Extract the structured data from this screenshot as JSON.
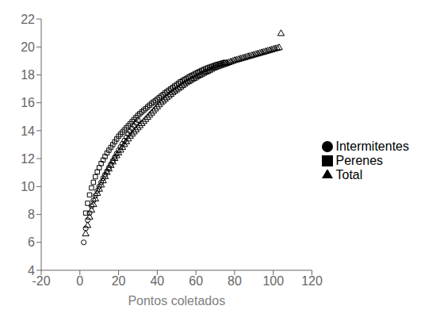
{
  "chart_data": {
    "type": "scatter",
    "xlabel": "Pontos coletados",
    "xlim": [
      -20,
      120
    ],
    "ylim": [
      4,
      22
    ],
    "xticks": [
      -20,
      0,
      20,
      40,
      60,
      80,
      100,
      120
    ],
    "yticks": [
      4,
      6,
      8,
      10,
      12,
      14,
      16,
      18,
      20,
      22
    ],
    "grid": false,
    "legend": "right",
    "series": [
      {
        "name": "Total",
        "color": "#000000",
        "marker": "triangle",
        "x": [
          3,
          4,
          5,
          6,
          7,
          8,
          9,
          10,
          11,
          12,
          13,
          14,
          15,
          16,
          17,
          18,
          19,
          20,
          21,
          22,
          23,
          24,
          25,
          26,
          27,
          28,
          29,
          30,
          31,
          32,
          33,
          34,
          35,
          36,
          37,
          38,
          39,
          40,
          41,
          42,
          43,
          44,
          45,
          46,
          47,
          48,
          49,
          50,
          51,
          52,
          53,
          54,
          55,
          56,
          57,
          58,
          59,
          60,
          61,
          62,
          63,
          64,
          65,
          66,
          67,
          68,
          69,
          70,
          71,
          72,
          73,
          74,
          75,
          76,
          77,
          78,
          79,
          80,
          81,
          82,
          83,
          84,
          85,
          86,
          87,
          88,
          89,
          90,
          91,
          92,
          93,
          94,
          95,
          96,
          97,
          98,
          99,
          100,
          101,
          102,
          103,
          104
        ],
        "values": [
          6.6,
          7.2,
          7.8,
          8.3,
          8.7,
          9.1,
          9.5,
          9.8,
          10.1,
          10.4,
          10.7,
          11.0,
          11.25,
          11.5,
          11.75,
          12.0,
          12.2,
          12.4,
          12.6,
          12.8,
          13.0,
          13.2,
          13.4,
          13.6,
          13.75,
          13.9,
          14.05,
          14.2,
          14.35,
          14.5,
          14.65,
          14.8,
          14.95,
          15.1,
          15.25,
          15.4,
          15.55,
          15.7,
          15.85,
          16.0,
          16.12,
          16.24,
          16.36,
          16.48,
          16.6,
          16.72,
          16.82,
          16.92,
          17.02,
          17.12,
          17.22,
          17.32,
          17.42,
          17.5,
          17.58,
          17.66,
          17.74,
          17.82,
          17.9,
          17.97,
          18.04,
          18.11,
          18.18,
          18.25,
          18.32,
          18.39,
          18.46,
          18.52,
          18.57,
          18.62,
          18.67,
          18.72,
          18.77,
          18.82,
          18.87,
          18.92,
          18.97,
          19.02,
          19.06,
          19.1,
          19.14,
          19.18,
          19.22,
          19.26,
          19.3,
          19.34,
          19.38,
          19.42,
          19.46,
          19.5,
          19.54,
          19.58,
          19.62,
          19.66,
          19.7,
          19.74,
          19.78,
          19.82,
          19.86,
          19.9,
          19.94,
          20.95
        ]
      },
      {
        "name": "Perenes",
        "color": "#000000",
        "marker": "square",
        "x": [
          3,
          4,
          5,
          6,
          7,
          8,
          9,
          10,
          11,
          12,
          13,
          14,
          15,
          16,
          17,
          18,
          19,
          20,
          21,
          22,
          23,
          24,
          25,
          26,
          27,
          28,
          29,
          30,
          31,
          32,
          33,
          34,
          35,
          36,
          37,
          38,
          39,
          40,
          41,
          42,
          43,
          44,
          45,
          46,
          47,
          48,
          49,
          50,
          51,
          52,
          53,
          54,
          55,
          56,
          57,
          58,
          59,
          60,
          61,
          62,
          63,
          64,
          65,
          66,
          67,
          68,
          69,
          70,
          71,
          72,
          73,
          74,
          75
        ],
        "values": [
          8.1,
          8.8,
          9.4,
          9.9,
          10.3,
          10.7,
          11.05,
          11.35,
          11.65,
          11.9,
          12.15,
          12.4,
          12.6,
          12.8,
          13.0,
          13.2,
          13.4,
          13.6,
          13.75,
          13.9,
          14.05,
          14.2,
          14.35,
          14.5,
          14.65,
          14.8,
          14.95,
          15.1,
          15.22,
          15.34,
          15.46,
          15.58,
          15.7,
          15.82,
          15.94,
          16.05,
          16.15,
          16.26,
          16.37,
          16.48,
          16.59,
          16.7,
          16.8,
          16.9,
          17.0,
          17.1,
          17.2,
          17.3,
          17.4,
          17.5,
          17.58,
          17.66,
          17.74,
          17.82,
          17.9,
          17.97,
          18.04,
          18.11,
          18.18,
          18.25,
          18.32,
          18.38,
          18.44,
          18.5,
          18.55,
          18.6,
          18.65,
          18.7,
          18.74,
          18.78,
          18.82,
          18.86,
          18.9
        ]
      },
      {
        "name": "Intermitentes",
        "color": "#000000",
        "marker": "circle",
        "x": [
          2,
          3,
          4,
          5,
          6,
          7,
          8,
          9,
          10,
          11,
          12,
          13,
          14,
          15,
          16,
          17,
          18,
          19,
          20,
          21,
          22,
          23,
          24,
          25,
          26,
          27,
          28,
          29,
          30
        ],
        "values": [
          6.0,
          7.0,
          7.6,
          8.1,
          8.6,
          9.0,
          9.35,
          9.7,
          10.0,
          10.3,
          10.6,
          10.85,
          11.1,
          11.35,
          11.6,
          11.85,
          12.1,
          12.35,
          12.6,
          12.83,
          13.06,
          13.29,
          13.52,
          13.75,
          13.95,
          14.15,
          14.35,
          14.55,
          14.75
        ]
      }
    ]
  }
}
